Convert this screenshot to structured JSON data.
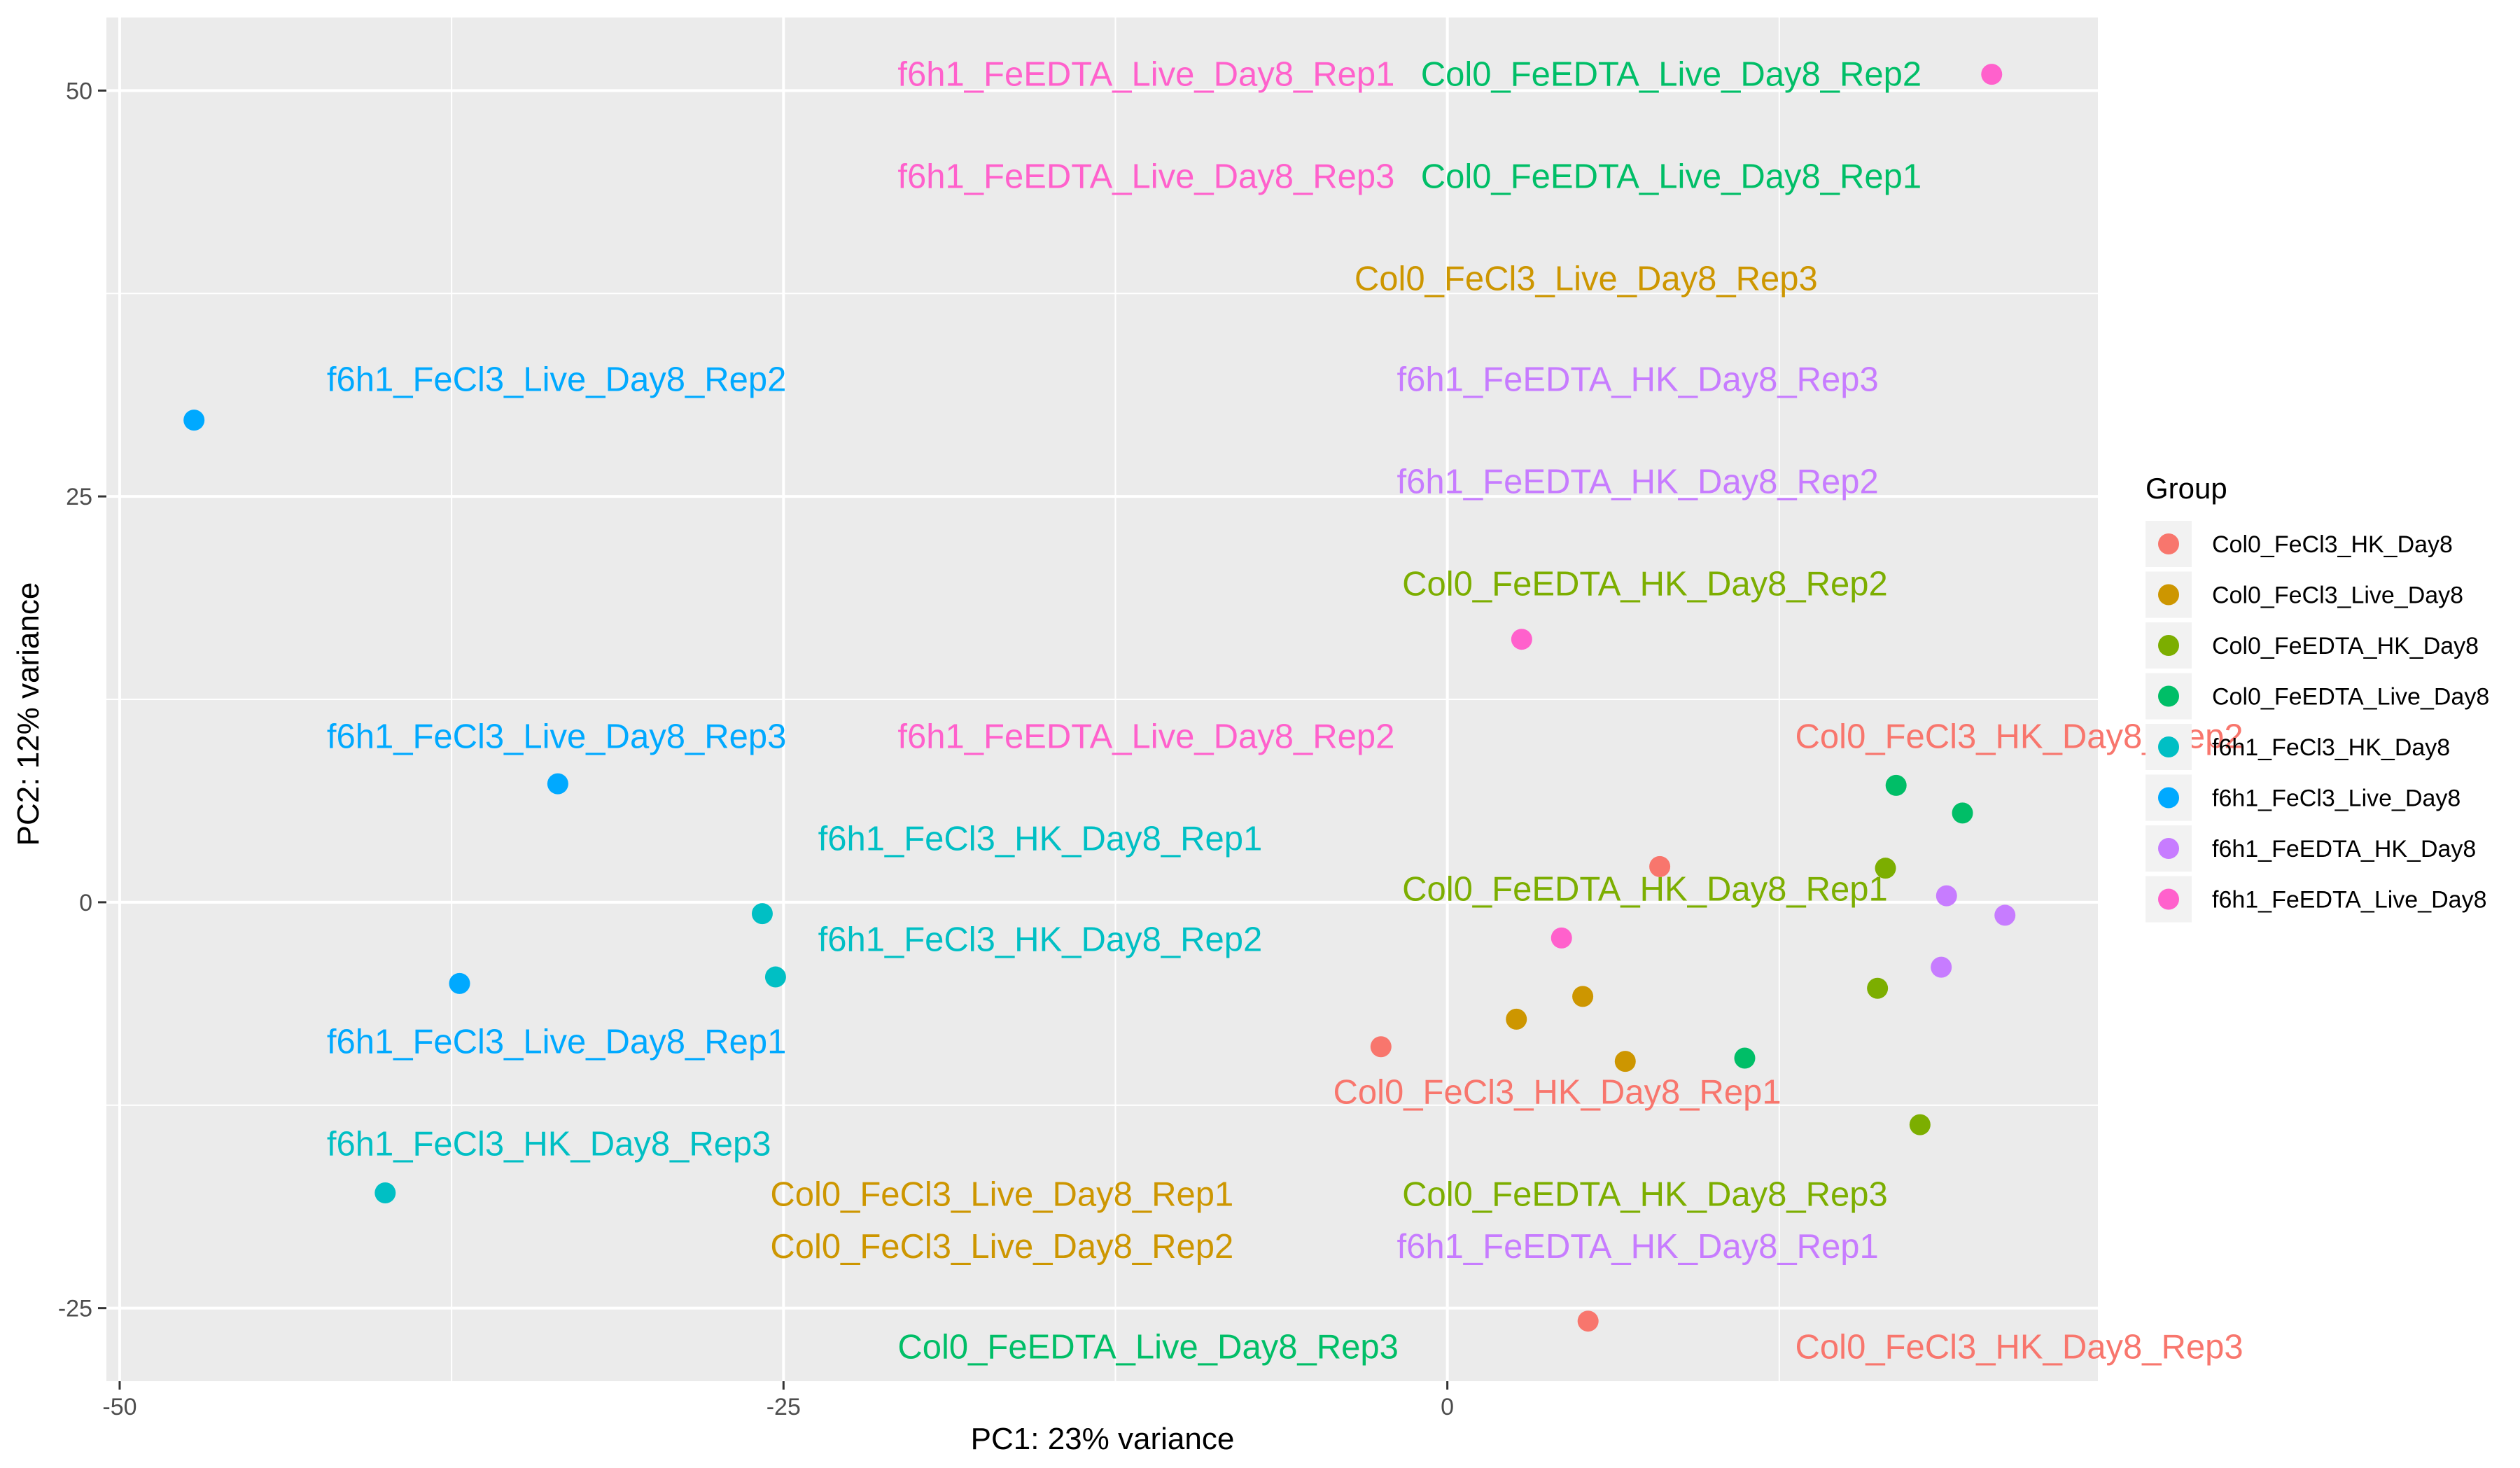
{
  "chart_data": {
    "type": "scatter",
    "xlabel": "PC1: 23% variance",
    "ylabel": "PC2: 12% variance",
    "xlim": [
      -50.5,
      24.5
    ],
    "ylim": [
      -29.5,
      54.5
    ],
    "x_ticks": [
      -50,
      -25,
      0
    ],
    "x_tick_labels": [
      "-50",
      "-25",
      "0"
    ],
    "y_ticks": [
      -25,
      0,
      25,
      50
    ],
    "y_tick_labels": [
      "-25",
      "0",
      "25",
      "50"
    ],
    "grid": true,
    "legend": {
      "title": "Group",
      "position": "right"
    },
    "groups": [
      {
        "name": "Col0_FeCl3_HK_Day8",
        "color": "#F8766D"
      },
      {
        "name": "Col0_FeCl3_Live_Day8",
        "color": "#CD9600"
      },
      {
        "name": "Col0_FeEDTA_HK_Day8",
        "color": "#7CAE00"
      },
      {
        "name": "Col0_FeEDTA_Live_Day8",
        "color": "#00BE67"
      },
      {
        "name": "f6h1_FeCl3_HK_Day8",
        "color": "#00BFC4"
      },
      {
        "name": "f6h1_FeCl3_Live_Day8",
        "color": "#00A9FF"
      },
      {
        "name": "f6h1_FeEDTA_HK_Day8",
        "color": "#C77CFF"
      },
      {
        "name": "f6h1_FeEDTA_Live_Day8",
        "color": "#FF61CC"
      }
    ],
    "points": [
      {
        "group": 0,
        "x": 8.0,
        "y": 2.2
      },
      {
        "group": 0,
        "x": -2.5,
        "y": -8.9
      },
      {
        "group": 0,
        "x": 5.3,
        "y": -25.8
      },
      {
        "group": 1,
        "x": 2.6,
        "y": -7.2
      },
      {
        "group": 1,
        "x": 5.1,
        "y": -5.8
      },
      {
        "group": 1,
        "x": 6.7,
        "y": -9.8
      },
      {
        "group": 2,
        "x": 16.5,
        "y": 2.1
      },
      {
        "group": 2,
        "x": 16.2,
        "y": -5.3
      },
      {
        "group": 2,
        "x": 17.8,
        "y": -13.7
      },
      {
        "group": 3,
        "x": 16.9,
        "y": 7.2
      },
      {
        "group": 3,
        "x": 19.4,
        "y": 5.5
      },
      {
        "group": 3,
        "x": 11.2,
        "y": -9.6
      },
      {
        "group": 4,
        "x": -25.8,
        "y": -0.7
      },
      {
        "group": 4,
        "x": -25.3,
        "y": -4.6
      },
      {
        "group": 4,
        "x": -40.0,
        "y": -17.9
      },
      {
        "group": 5,
        "x": -47.2,
        "y": 29.7
      },
      {
        "group": 5,
        "x": -33.5,
        "y": 7.3
      },
      {
        "group": 5,
        "x": -37.2,
        "y": -5.0
      },
      {
        "group": 6,
        "x": 18.8,
        "y": 0.4
      },
      {
        "group": 6,
        "x": 21.0,
        "y": -0.8
      },
      {
        "group": 6,
        "x": 18.6,
        "y": -4.0
      },
      {
        "group": 7,
        "x": 20.5,
        "y": 51.0
      },
      {
        "group": 7,
        "x": 2.8,
        "y": 16.2
      },
      {
        "group": 7,
        "x": 4.3,
        "y": -2.2
      }
    ],
    "labels": [
      {
        "text": "f6h1_FeEDTA_Live_Day8_Rep1",
        "group": 7,
        "x": -20.7,
        "y": 50.3
      },
      {
        "text": "Col0_FeEDTA_Live_Day8_Rep2",
        "group": 3,
        "x": -1.0,
        "y": 50.3
      },
      {
        "text": "f6h1_FeEDTA_Live_Day8_Rep3",
        "group": 7,
        "x": -20.7,
        "y": 44.0
      },
      {
        "text": "Col0_FeEDTA_Live_Day8_Rep1",
        "group": 3,
        "x": -1.0,
        "y": 44.0
      },
      {
        "text": "Col0_FeCl3_Live_Day8_Rep3",
        "group": 1,
        "x": -3.5,
        "y": 37.7
      },
      {
        "text": "f6h1_FeCl3_Live_Day8_Rep2",
        "group": 5,
        "x": -42.2,
        "y": 31.5
      },
      {
        "text": "f6h1_FeEDTA_HK_Day8_Rep3",
        "group": 6,
        "x": -1.9,
        "y": 31.5
      },
      {
        "text": "f6h1_FeEDTA_HK_Day8_Rep2",
        "group": 6,
        "x": -1.9,
        "y": 25.2
      },
      {
        "text": "Col0_FeEDTA_HK_Day8_Rep2",
        "group": 2,
        "x": -1.7,
        "y": 18.9
      },
      {
        "text": "f6h1_FeCl3_Live_Day8_Rep3",
        "group": 5,
        "x": -42.2,
        "y": 9.5
      },
      {
        "text": "f6h1_FeEDTA_Live_Day8_Rep2",
        "group": 7,
        "x": -20.7,
        "y": 9.5
      },
      {
        "text": "Col0_FeCl3_HK_Day8_Rep2",
        "group": 0,
        "x": 13.1,
        "y": 9.5
      },
      {
        "text": "f6h1_FeCl3_HK_Day8_Rep1",
        "group": 4,
        "x": -23.7,
        "y": 3.2
      },
      {
        "text": "Col0_FeEDTA_HK_Day8_Rep1",
        "group": 2,
        "x": -1.7,
        "y": 0.1
      },
      {
        "text": "f6h1_FeCl3_HK_Day8_Rep2",
        "group": 4,
        "x": -23.7,
        "y": -3.0
      },
      {
        "text": "f6h1_FeCl3_Live_Day8_Rep1",
        "group": 5,
        "x": -42.2,
        "y": -9.3
      },
      {
        "text": "Col0_FeCl3_HK_Day8_Rep1",
        "group": 0,
        "x": -4.3,
        "y": -12.4
      },
      {
        "text": "f6h1_FeCl3_HK_Day8_Rep3",
        "group": 4,
        "x": -42.2,
        "y": -15.6
      },
      {
        "text": "Col0_FeCl3_Live_Day8_Rep1",
        "group": 1,
        "x": -25.5,
        "y": -18.7
      },
      {
        "text": "Col0_FeEDTA_HK_Day8_Rep3",
        "group": 2,
        "x": -1.7,
        "y": -18.7
      },
      {
        "text": "Col0_FeCl3_Live_Day8_Rep2",
        "group": 1,
        "x": -25.5,
        "y": -21.9
      },
      {
        "text": "f6h1_FeEDTA_HK_Day8_Rep1",
        "group": 6,
        "x": -1.9,
        "y": -21.9
      },
      {
        "text": "Col0_FeEDTA_Live_Day8_Rep3",
        "group": 3,
        "x": -20.7,
        "y": -28.1
      },
      {
        "text": "Col0_FeCl3_HK_Day8_Rep3",
        "group": 0,
        "x": 13.1,
        "y": -28.1
      }
    ]
  }
}
